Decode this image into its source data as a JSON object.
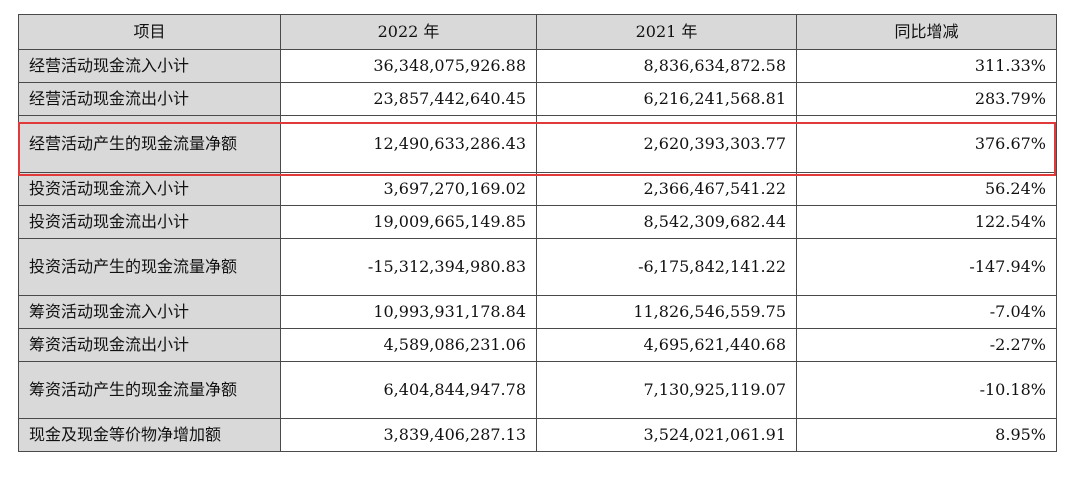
{
  "table": {
    "headers": [
      "项目",
      "2022 年",
      "2021 年",
      "同比增减"
    ],
    "rows": [
      {
        "label": "经营活动现金流入小计",
        "y2022": "36,348,075,926.88",
        "y2021": "8,836,634,872.58",
        "change": "311.33%"
      },
      {
        "label": "经营活动现金流出小计",
        "y2022": "23,857,442,640.45",
        "y2021": "6,216,241,568.81",
        "change": "283.79%"
      },
      {
        "label": "经营活动产生的现金流量净额",
        "y2022": "12,490,633,286.43",
        "y2021": "2,620,393,303.77",
        "change": "376.67%"
      },
      {
        "label": "投资活动现金流入小计",
        "y2022": "3,697,270,169.02",
        "y2021": "2,366,467,541.22",
        "change": "56.24%"
      },
      {
        "label": "投资活动现金流出小计",
        "y2022": "19,009,665,149.85",
        "y2021": "8,542,309,682.44",
        "change": "122.54%"
      },
      {
        "label": "投资活动产生的现金流量净额",
        "y2022": "-15,312,394,980.83",
        "y2021": "-6,175,842,141.22",
        "change": "-147.94%"
      },
      {
        "label": "筹资活动现金流入小计",
        "y2022": "10,993,931,178.84",
        "y2021": "11,826,546,559.75",
        "change": "-7.04%"
      },
      {
        "label": "筹资活动现金流出小计",
        "y2022": "4,589,086,231.06",
        "y2021": "4,695,621,440.68",
        "change": "-2.27%"
      },
      {
        "label": "筹资活动产生的现金流量净额",
        "y2022": "6,404,844,947.78",
        "y2021": "7,130,925,119.07",
        "change": "-10.18%"
      },
      {
        "label": "现金及现金等价物净增加额",
        "y2022": "3,839,406,287.13",
        "y2021": "3,524,021,061.91",
        "change": "8.95%"
      }
    ]
  },
  "highlight": {
    "row_label": "经营活动产生的现金流量净额",
    "color": "#e03a3a"
  }
}
